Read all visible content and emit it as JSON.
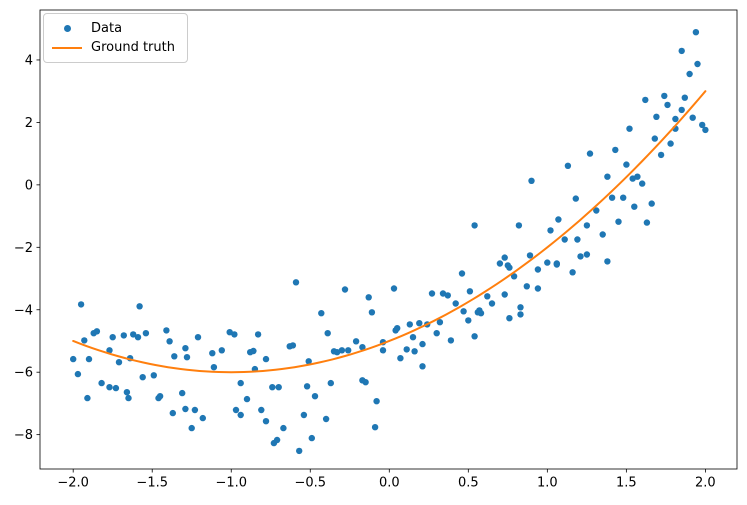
{
  "chart_data": {
    "type": "scatter",
    "title": "",
    "xlabel": "",
    "ylabel": "",
    "xlim": [
      -2.21,
      2.2
    ],
    "ylim": [
      -9.1,
      5.6
    ],
    "grid": false,
    "colors": {
      "data_blue": "#1f77b4",
      "ground_truth_orange": "#ff7f0e",
      "spine": "#000000",
      "legend_border": "#cccccc"
    },
    "x_ticks": {
      "values": [
        -2.0,
        -1.5,
        -1.0,
        -0.5,
        0.0,
        0.5,
        1.0,
        1.5,
        2.0
      ],
      "labels": [
        "−2.0",
        "−1.5",
        "−1.0",
        "−0.5",
        "0.0",
        "0.5",
        "1.0",
        "1.5",
        "2.0"
      ]
    },
    "y_ticks": {
      "values": [
        -8,
        -6,
        -4,
        -2,
        0,
        2,
        4
      ],
      "labels": [
        "−8",
        "−6",
        "−4",
        "−2",
        "0",
        "2",
        "4"
      ]
    },
    "legend": {
      "position": "upper left",
      "items": [
        {
          "label": "Data",
          "type": "marker",
          "color": "#1f77b4"
        },
        {
          "label": "Ground truth",
          "type": "line",
          "color": "#ff7f0e"
        }
      ]
    },
    "series": [
      {
        "name": "Data",
        "type": "scatter",
        "color": "#1f77b4",
        "marker_size": 3.2,
        "points": [
          [
            -1.95,
            -3.83
          ],
          [
            -1.58,
            -3.89
          ],
          [
            -1.93,
            -4.98
          ],
          [
            -1.87,
            -4.75
          ],
          [
            -1.85,
            -4.69
          ],
          [
            -1.75,
            -4.88
          ],
          [
            -1.68,
            -4.82
          ],
          [
            -1.62,
            -4.79
          ],
          [
            -1.59,
            -4.88
          ],
          [
            -1.54,
            -4.75
          ],
          [
            -1.41,
            -4.66
          ],
          [
            -1.39,
            -5.01
          ],
          [
            -1.21,
            -4.88
          ],
          [
            -2.0,
            -5.58
          ],
          [
            -1.9,
            -5.58
          ],
          [
            -1.77,
            -5.3
          ],
          [
            -1.71,
            -5.68
          ],
          [
            -1.64,
            -5.55
          ],
          [
            -1.36,
            -5.49
          ],
          [
            -1.29,
            -5.23
          ],
          [
            -1.28,
            -5.52
          ],
          [
            -1.97,
            -6.06
          ],
          [
            -1.82,
            -6.35
          ],
          [
            -1.77,
            -6.48
          ],
          [
            -1.73,
            -6.51
          ],
          [
            -1.66,
            -6.64
          ],
          [
            -1.56,
            -6.16
          ],
          [
            -1.49,
            -6.1
          ],
          [
            -1.46,
            -6.83
          ],
          [
            -1.31,
            -6.67
          ],
          [
            -1.12,
            -5.39
          ],
          [
            -1.11,
            -5.84
          ],
          [
            -1.91,
            -6.83
          ],
          [
            -1.65,
            -6.83
          ],
          [
            -1.45,
            -6.77
          ],
          [
            -1.37,
            -7.31
          ],
          [
            -1.29,
            -7.18
          ],
          [
            -1.23,
            -7.21
          ],
          [
            -1.18,
            -7.47
          ],
          [
            -1.25,
            -7.79
          ],
          [
            -0.59,
            -3.12
          ],
          [
            -0.28,
            -3.35
          ],
          [
            -0.13,
            -3.6
          ],
          [
            -0.43,
            -4.11
          ],
          [
            -0.11,
            -4.08
          ],
          [
            -1.01,
            -4.72
          ],
          [
            -0.98,
            -4.79
          ],
          [
            -0.83,
            -4.79
          ],
          [
            -0.39,
            -4.75
          ],
          [
            -1.06,
            -5.3
          ],
          [
            -0.88,
            -5.36
          ],
          [
            -0.86,
            -5.32
          ],
          [
            -0.78,
            -5.58
          ],
          [
            -0.63,
            -5.17
          ],
          [
            -0.61,
            -5.14
          ],
          [
            -0.51,
            -5.65
          ],
          [
            -0.35,
            -5.33
          ],
          [
            -0.33,
            -5.36
          ],
          [
            -0.3,
            -5.3
          ],
          [
            -0.26,
            -5.3
          ],
          [
            -0.21,
            -5.01
          ],
          [
            -0.17,
            -5.2
          ],
          [
            -0.04,
            -5.04
          ],
          [
            -0.04,
            -5.3
          ],
          [
            0.04,
            -4.66
          ],
          [
            -0.85,
            -5.9
          ],
          [
            -0.94,
            -6.35
          ],
          [
            -0.74,
            -6.48
          ],
          [
            -0.7,
            -6.48
          ],
          [
            -0.52,
            -6.45
          ],
          [
            -0.37,
            -6.35
          ],
          [
            -0.17,
            -6.26
          ],
          [
            -0.15,
            -6.32
          ],
          [
            -0.47,
            -6.77
          ],
          [
            -0.9,
            -6.86
          ],
          [
            -0.97,
            -7.21
          ],
          [
            -0.94,
            -7.37
          ],
          [
            -0.81,
            -7.21
          ],
          [
            -0.78,
            -7.57
          ],
          [
            -0.67,
            -7.79
          ],
          [
            -0.73,
            -8.27
          ],
          [
            -0.71,
            -8.17
          ],
          [
            -0.57,
            -8.52
          ],
          [
            -0.54,
            -7.37
          ],
          [
            -0.4,
            -7.5
          ],
          [
            -0.49,
            -8.11
          ],
          [
            -0.08,
            -6.93
          ],
          [
            -0.09,
            -7.76
          ],
          [
            0.7,
            -2.52
          ],
          [
            0.76,
            -2.65
          ],
          [
            0.94,
            -2.71
          ],
          [
            1.06,
            -2.52
          ],
          [
            0.46,
            -2.84
          ],
          [
            0.79,
            -2.93
          ],
          [
            0.03,
            -3.32
          ],
          [
            0.27,
            -3.48
          ],
          [
            0.34,
            -3.48
          ],
          [
            0.37,
            -3.54
          ],
          [
            0.51,
            -3.41
          ],
          [
            0.62,
            -3.57
          ],
          [
            0.73,
            -3.51
          ],
          [
            0.87,
            -3.25
          ],
          [
            0.94,
            -3.32
          ],
          [
            0.42,
            -3.8
          ],
          [
            0.65,
            -3.8
          ],
          [
            0.47,
            -4.05
          ],
          [
            0.56,
            -4.08
          ],
          [
            0.57,
            -4.02
          ],
          [
            0.58,
            -4.11
          ],
          [
            0.5,
            -4.34
          ],
          [
            0.32,
            -4.4
          ],
          [
            0.13,
            -4.47
          ],
          [
            0.19,
            -4.43
          ],
          [
            0.24,
            -4.47
          ],
          [
            0.05,
            -4.59
          ],
          [
            0.3,
            -4.75
          ],
          [
            0.15,
            -4.88
          ],
          [
            0.21,
            -5.1
          ],
          [
            0.39,
            -4.98
          ],
          [
            0.54,
            -4.85
          ],
          [
            0.11,
            -5.27
          ],
          [
            0.16,
            -5.33
          ],
          [
            0.76,
            -4.27
          ],
          [
            0.83,
            -3.92
          ],
          [
            0.83,
            -4.15
          ],
          [
            0.07,
            -5.55
          ],
          [
            0.21,
            -5.81
          ],
          [
            1.16,
            -2.8
          ],
          [
            1.27,
            1.0
          ],
          [
            1.13,
            0.61
          ],
          [
            0.9,
            0.13
          ],
          [
            1.38,
            0.26
          ],
          [
            1.18,
            -0.44
          ],
          [
            1.31,
            -0.82
          ],
          [
            1.07,
            -1.11
          ],
          [
            0.82,
            -1.3
          ],
          [
            1.02,
            -1.46
          ],
          [
            1.25,
            -1.3
          ],
          [
            1.35,
            -1.59
          ],
          [
            1.11,
            -1.75
          ],
          [
            1.19,
            -1.75
          ],
          [
            0.73,
            -2.33
          ],
          [
            0.75,
            -2.58
          ],
          [
            1.21,
            -2.29
          ],
          [
            1.25,
            -2.23
          ],
          [
            1.0,
            -2.49
          ],
          [
            1.06,
            -2.55
          ],
          [
            1.38,
            -2.45
          ],
          [
            1.94,
            4.89
          ],
          [
            1.85,
            4.29
          ],
          [
            1.95,
            3.87
          ],
          [
            1.9,
            3.55
          ],
          [
            1.87,
            2.79
          ],
          [
            1.74,
            2.85
          ],
          [
            1.62,
            2.72
          ],
          [
            1.76,
            2.56
          ],
          [
            1.85,
            2.4
          ],
          [
            1.81,
            2.11
          ],
          [
            1.92,
            2.15
          ],
          [
            1.69,
            2.18
          ],
          [
            1.81,
            1.8
          ],
          [
            1.52,
            1.8
          ],
          [
            1.98,
            1.92
          ],
          [
            2.0,
            1.76
          ],
          [
            1.68,
            1.48
          ],
          [
            1.78,
            1.32
          ],
          [
            1.43,
            1.12
          ],
          [
            1.72,
            0.96
          ],
          [
            1.5,
            0.65
          ],
          [
            1.54,
            0.2
          ],
          [
            1.57,
            0.26
          ],
          [
            1.6,
            0.04
          ],
          [
            1.41,
            -0.41
          ],
          [
            1.48,
            -0.41
          ],
          [
            1.55,
            -0.7
          ],
          [
            1.66,
            -0.6
          ],
          [
            1.45,
            -1.18
          ],
          [
            1.63,
            -1.21
          ],
          [
            0.89,
            -2.26
          ],
          [
            0.54,
            -1.3
          ]
        ]
      },
      {
        "name": "Ground truth",
        "type": "line",
        "color": "#ff7f0e",
        "line_width": 2,
        "poly_coeffs": [
          1,
          2,
          -5
        ],
        "x_range": [
          -2,
          2
        ]
      }
    ]
  }
}
